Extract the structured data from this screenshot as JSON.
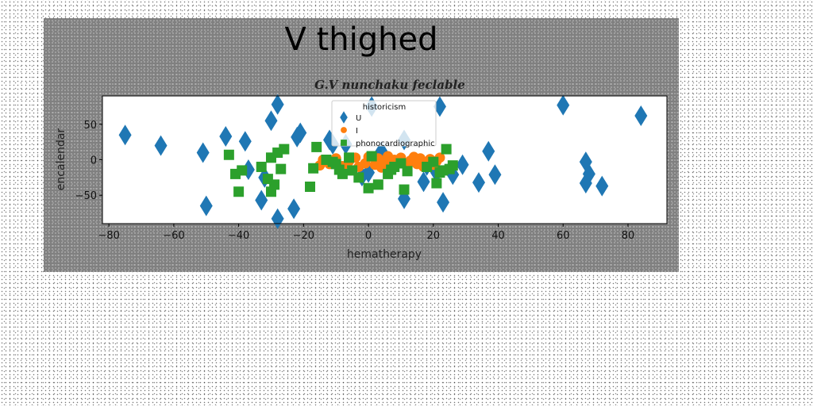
{
  "chart_data": {
    "type": "scatter",
    "suptitle": "V thighed",
    "title": "G.V nunchaku feclable",
    "xlabel": "hematherapy",
    "ylabel": "encalendar",
    "xlim": [
      -82,
      92
    ],
    "ylim": [
      -90,
      90
    ],
    "xticks": [
      -80,
      -60,
      -40,
      -20,
      0,
      20,
      40,
      60,
      80
    ],
    "yticks": [
      -50,
      0,
      50
    ],
    "grid": false,
    "legend": {
      "title": "historicism",
      "position": "upper-center"
    },
    "series": [
      {
        "name": "U",
        "marker": "diamond",
        "color": "#1f77b4",
        "points": [
          [
            -75,
            35
          ],
          [
            -64,
            20
          ],
          [
            -51,
            10
          ],
          [
            -50,
            -65
          ],
          [
            -44,
            33
          ],
          [
            -38,
            26
          ],
          [
            -37,
            -14
          ],
          [
            -33,
            -57
          ],
          [
            -32,
            -25
          ],
          [
            -30,
            55
          ],
          [
            -28,
            78
          ],
          [
            -28,
            -83
          ],
          [
            -23,
            -69
          ],
          [
            -22,
            32
          ],
          [
            -21,
            38
          ],
          [
            -12,
            28
          ],
          [
            -11,
            22
          ],
          [
            -7,
            22
          ],
          [
            -2,
            -23
          ],
          [
            0,
            -18
          ],
          [
            1,
            75
          ],
          [
            4,
            12
          ],
          [
            11,
            -55
          ],
          [
            11,
            28
          ],
          [
            17,
            -31
          ],
          [
            18,
            -8
          ],
          [
            21,
            -18
          ],
          [
            22,
            75
          ],
          [
            23,
            -60
          ],
          [
            26,
            -21
          ],
          [
            29,
            -7
          ],
          [
            34,
            -32
          ],
          [
            37,
            12
          ],
          [
            39,
            -21
          ],
          [
            60,
            77
          ],
          [
            67,
            -3
          ],
          [
            67,
            -33
          ],
          [
            68,
            -20
          ],
          [
            72,
            -37
          ],
          [
            84,
            62
          ]
        ]
      },
      {
        "name": "I",
        "marker": "circle",
        "color": "#ff7f0e",
        "points": [
          [
            -15,
            -8
          ],
          [
            -14,
            0
          ],
          [
            -12,
            -6
          ],
          [
            -10,
            2
          ],
          [
            -8,
            -9
          ],
          [
            -6,
            -2
          ],
          [
            -4,
            3
          ],
          [
            -3,
            -10
          ],
          [
            -1,
            -5
          ],
          [
            0,
            4
          ],
          [
            2,
            -7
          ],
          [
            3,
            2
          ],
          [
            4,
            -11
          ],
          [
            5,
            -3
          ],
          [
            6,
            5
          ],
          [
            7,
            -8
          ],
          [
            8,
            0
          ],
          [
            9,
            -5
          ],
          [
            10,
            3
          ],
          [
            12,
            -9
          ],
          [
            13,
            -1
          ],
          [
            14,
            4
          ],
          [
            15,
            -6
          ],
          [
            16,
            2
          ],
          [
            17,
            -10
          ],
          [
            18,
            -3
          ],
          [
            19,
            1
          ],
          [
            20,
            -7
          ],
          [
            21,
            -2
          ],
          [
            22,
            3
          ]
        ]
      },
      {
        "name": "phonocardiographic",
        "marker": "square",
        "color": "#2ca02c",
        "points": [
          [
            -43,
            7
          ],
          [
            -41,
            -20
          ],
          [
            -40,
            -45
          ],
          [
            -39,
            -15
          ],
          [
            -33,
            -10
          ],
          [
            -31,
            -27
          ],
          [
            -30,
            -45
          ],
          [
            -30,
            3
          ],
          [
            -29,
            -35
          ],
          [
            -28,
            10
          ],
          [
            -27,
            -13
          ],
          [
            -26,
            15
          ],
          [
            -18,
            -38
          ],
          [
            -17,
            -12
          ],
          [
            -16,
            18
          ],
          [
            -13,
            0
          ],
          [
            -11,
            -3
          ],
          [
            -10,
            -6
          ],
          [
            -9,
            -14
          ],
          [
            -8,
            -20
          ],
          [
            -6,
            3
          ],
          [
            -5,
            -15
          ],
          [
            -3,
            -25
          ],
          [
            0,
            -40
          ],
          [
            1,
            5
          ],
          [
            3,
            -35
          ],
          [
            6,
            -20
          ],
          [
            7,
            -14
          ],
          [
            8,
            -10
          ],
          [
            10,
            -5
          ],
          [
            11,
            -42
          ],
          [
            12,
            -16
          ],
          [
            18,
            -10
          ],
          [
            20,
            -3
          ],
          [
            21,
            -33
          ],
          [
            22,
            -18
          ],
          [
            23,
            -15
          ],
          [
            24,
            15
          ],
          [
            25,
            -13
          ],
          [
            26,
            -8
          ]
        ]
      }
    ]
  }
}
